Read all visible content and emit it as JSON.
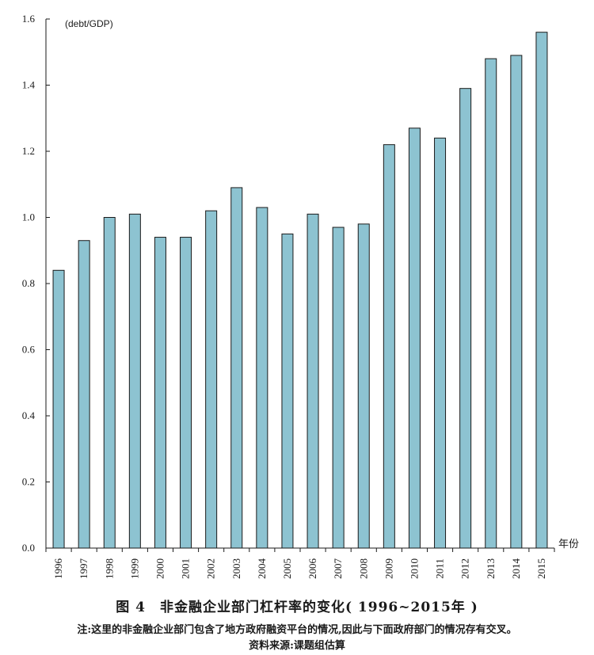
{
  "chart_data": {
    "type": "bar",
    "unit_label": "(debt/GDP)",
    "xlabel": "年份",
    "categories": [
      "1996",
      "1997",
      "1998",
      "1999",
      "2000",
      "2001",
      "2002",
      "2003",
      "2004",
      "2005",
      "2006",
      "2007",
      "2008",
      "2009",
      "2010",
      "2011",
      "2012",
      "2013",
      "2014",
      "2015"
    ],
    "values": [
      0.84,
      0.93,
      1.0,
      1.01,
      0.94,
      0.94,
      1.02,
      1.09,
      1.03,
      0.95,
      1.01,
      0.97,
      0.98,
      1.22,
      1.27,
      1.24,
      1.39,
      1.48,
      1.49,
      1.56
    ],
    "ylim": [
      0,
      1.6
    ],
    "yticks": [
      "0.0",
      "0.2",
      "0.4",
      "0.6",
      "0.8",
      "1.0",
      "1.2",
      "1.4",
      "1.6"
    ],
    "grid": false,
    "bar_color": "#8dc3d1"
  },
  "caption": {
    "title": "图 4　非金融企业部门杠杆率的变化( 1996~2015年 )",
    "note": "注:这里的非金融企业部门包含了地方政府融资平台的情况,因此与下面政府部门的情况存有交叉。",
    "source": "资料来源:课题组估算"
  }
}
